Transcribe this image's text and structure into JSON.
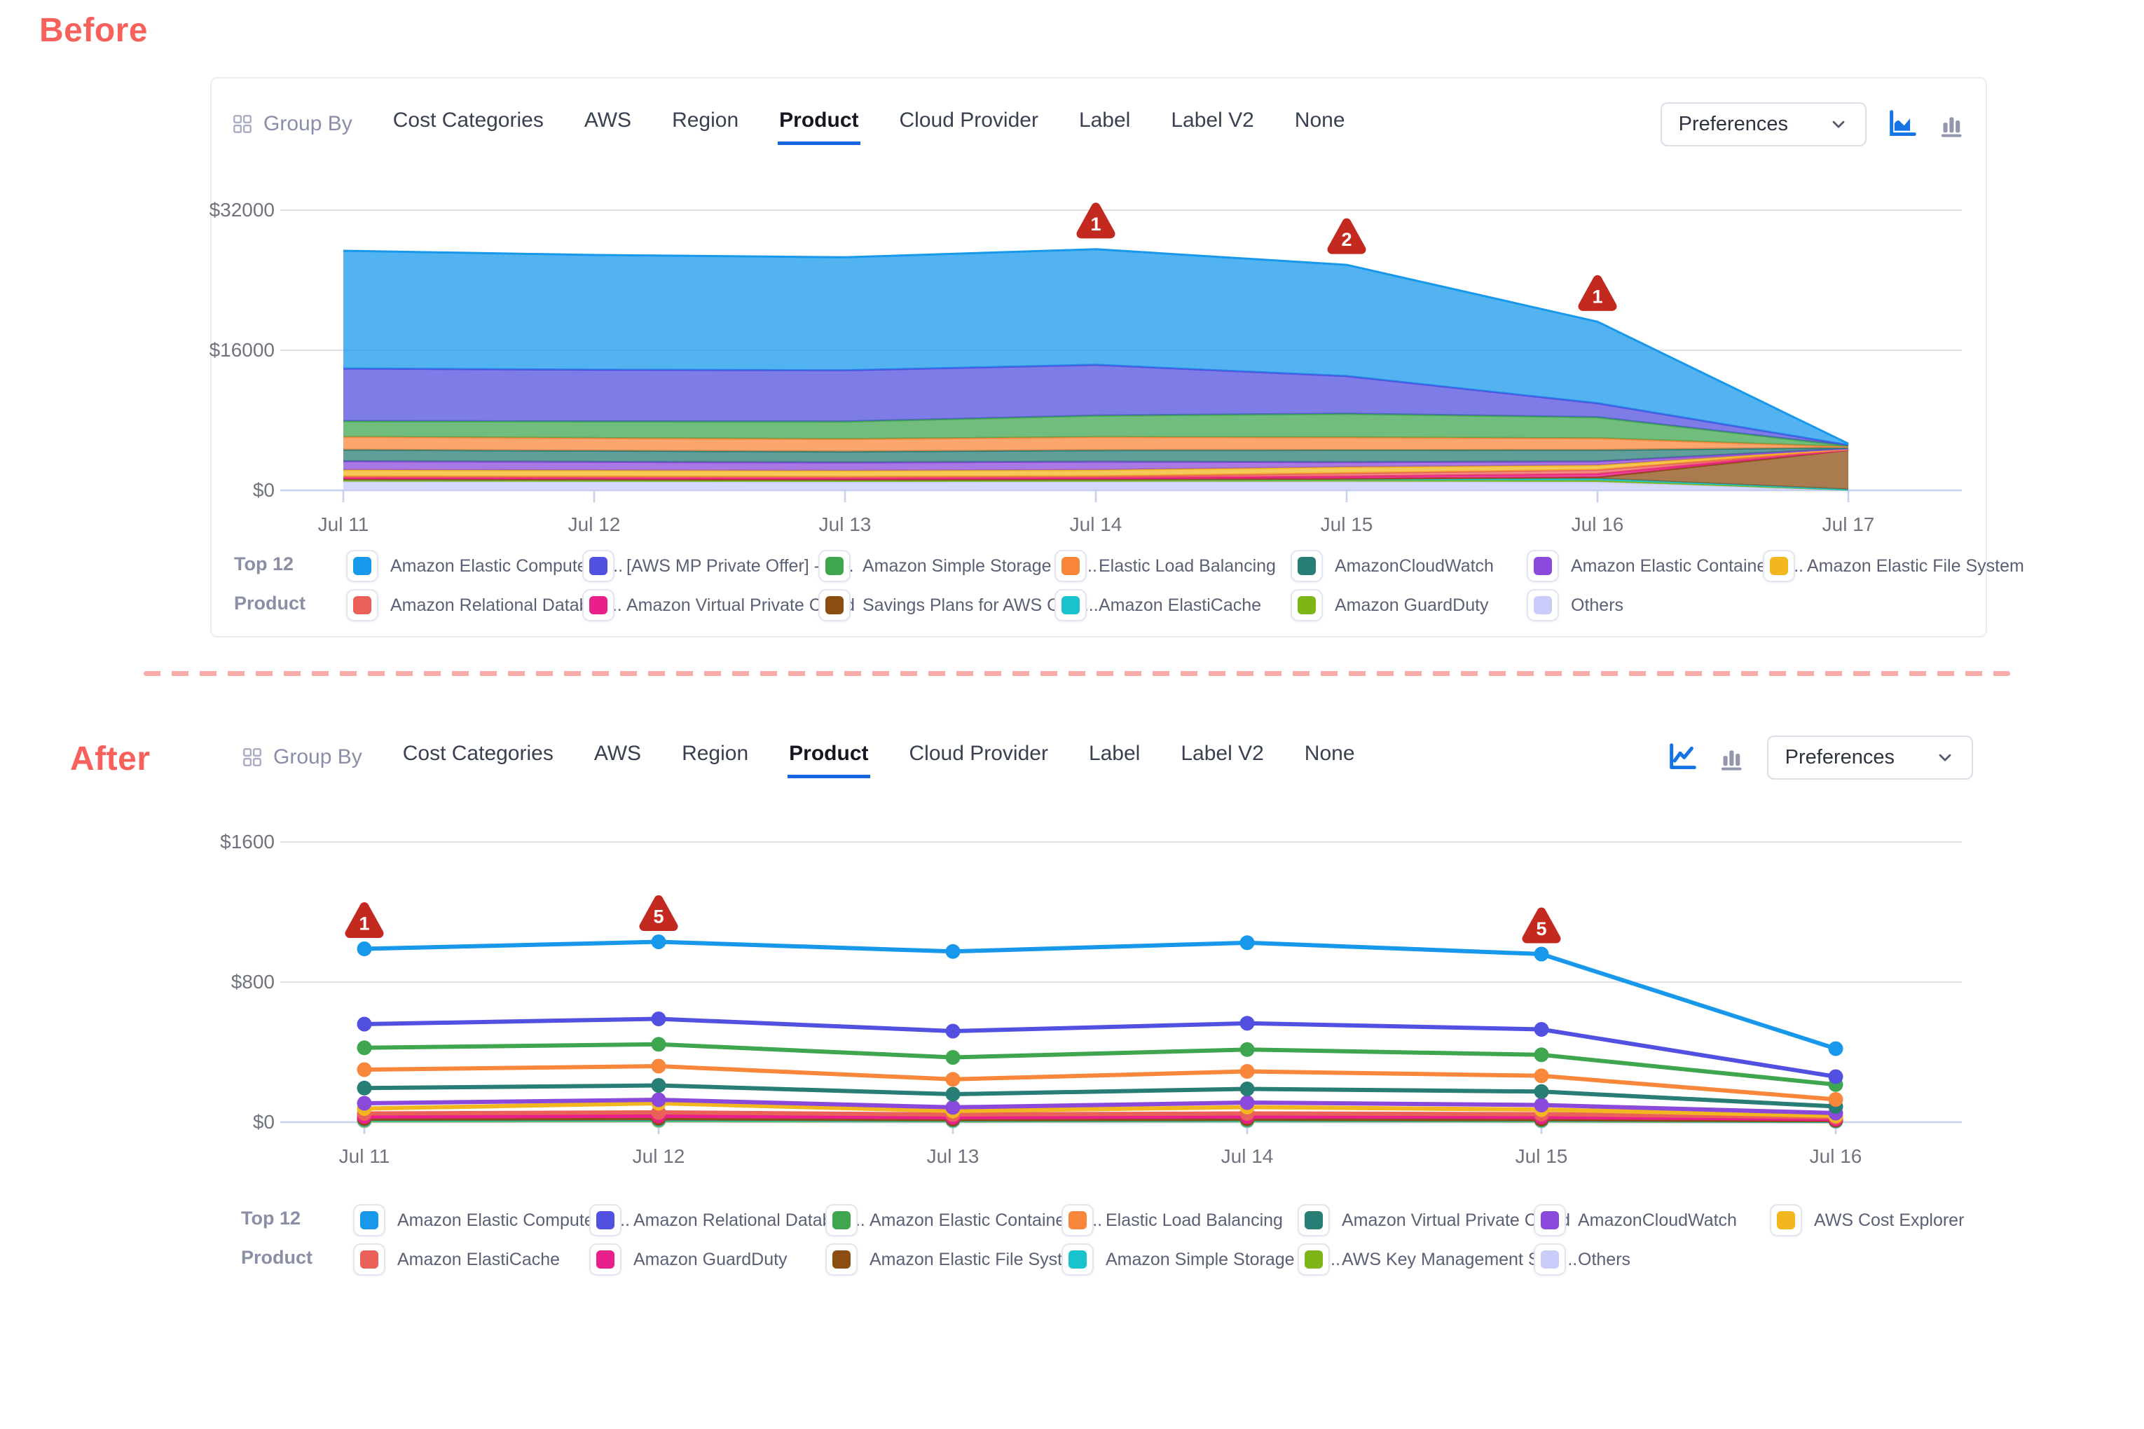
{
  "before": {
    "section_label": "Before",
    "accent_color": "#F8605C",
    "toolbar": {
      "group_by": "Group By",
      "tabs": [
        {
          "label": "Cost Categories",
          "active": false
        },
        {
          "label": "AWS",
          "active": false
        },
        {
          "label": "Region",
          "active": false
        },
        {
          "label": "Product",
          "active": true
        },
        {
          "label": "Cloud Provider",
          "active": false
        },
        {
          "label": "Label",
          "active": false
        },
        {
          "label": "Label V2",
          "active": false
        },
        {
          "label": "None",
          "active": false
        }
      ],
      "preferences": "Preferences",
      "icons": [
        {
          "name": "area-chart-icon",
          "active": true
        },
        {
          "name": "bar-chart-icon",
          "active": false
        }
      ]
    },
    "legend_title": [
      "Top 12",
      "Product"
    ],
    "chart_data": {
      "type": "area",
      "stacked": true,
      "title": "",
      "x": [
        "Jul 11",
        "Jul 12",
        "Jul 13",
        "Jul 14",
        "Jul 15",
        "Jul 16",
        "Jul 17"
      ],
      "y_ticks": [
        {
          "label": "$0",
          "value": 0
        },
        {
          "label": "$16000",
          "value": 16000
        },
        {
          "label": "$32000",
          "value": 32000
        }
      ],
      "ylim": [
        0,
        32000
      ],
      "grid": true,
      "legend_position": "bottom",
      "series": [
        {
          "name": "Amazon Elastic Compute Cl...",
          "color": "#1798EB",
          "values": [
            13450,
            13100,
            12900,
            13200,
            12700,
            9300,
            150
          ]
        },
        {
          "name": "[AWS MP Private Offer] - M...",
          "color": "#5150E0",
          "values": [
            6000,
            5900,
            5850,
            5800,
            4300,
            1600,
            80
          ]
        },
        {
          "name": "Amazon Simple Storage Ser...",
          "color": "#3FA64F",
          "values": [
            1800,
            1900,
            2000,
            2450,
            2700,
            2400,
            120
          ]
        },
        {
          "name": "Elastic Load Balancing",
          "color": "#F8873B",
          "values": [
            1480,
            1450,
            1430,
            1500,
            1450,
            1350,
            100
          ]
        },
        {
          "name": "AmazonCloudWatch",
          "color": "#287D75",
          "values": [
            1310,
            1280,
            1260,
            1310,
            1380,
            1300,
            90
          ]
        },
        {
          "name": "Amazon Elastic Container S...",
          "color": "#8A49DB",
          "values": [
            990,
            960,
            930,
            950,
            560,
            430,
            60
          ]
        },
        {
          "name": "Amazon Elastic File System",
          "color": "#F2B61E",
          "values": [
            740,
            720,
            700,
            720,
            700,
            540,
            50
          ]
        },
        {
          "name": "Amazon Relational Databas...",
          "color": "#EA6159",
          "values": [
            160,
            160,
            160,
            170,
            360,
            470,
            40
          ]
        },
        {
          "name": "Amazon Virtual Private Cloud",
          "color": "#E9208B",
          "values": [
            150,
            150,
            150,
            160,
            260,
            370,
            30
          ]
        },
        {
          "name": "Savings Plans for AWS Com...",
          "color": "#8C4D12",
          "values": [
            0,
            0,
            0,
            0,
            0,
            160,
            4500
          ]
        },
        {
          "name": "Amazon ElastiCache",
          "color": "#19C3CD",
          "values": [
            150,
            145,
            140,
            150,
            185,
            210,
            25
          ]
        },
        {
          "name": "Amazon GuardDuty",
          "color": "#7EB617",
          "values": [
            130,
            130,
            130,
            140,
            155,
            165,
            20
          ]
        },
        {
          "name": "Others",
          "color": "#C9CCF8",
          "values": [
            1000,
            985,
            965,
            985,
            1000,
            960,
            60
          ]
        }
      ],
      "annotations": [
        {
          "x": "Jul 14",
          "count": "1"
        },
        {
          "x": "Jul 15",
          "count": "2"
        },
        {
          "x": "Jul 16",
          "count": "1"
        }
      ],
      "annotation_color": "#C3291F"
    }
  },
  "separator": {
    "style": "dashed",
    "color": "#F9ABA9"
  },
  "after": {
    "section_label": "After",
    "accent_color": "#F8605C",
    "toolbar": {
      "group_by": "Group By",
      "tabs": [
        {
          "label": "Cost Categories",
          "active": false
        },
        {
          "label": "AWS",
          "active": false
        },
        {
          "label": "Region",
          "active": false
        },
        {
          "label": "Product",
          "active": true
        },
        {
          "label": "Cloud Provider",
          "active": false
        },
        {
          "label": "Label",
          "active": false
        },
        {
          "label": "Label V2",
          "active": false
        },
        {
          "label": "None",
          "active": false
        }
      ],
      "preferences": "Preferences",
      "icons": [
        {
          "name": "line-chart-icon",
          "active": true
        },
        {
          "name": "bar-chart-icon",
          "active": false
        }
      ]
    },
    "legend_title": [
      "Top 12",
      "Product"
    ],
    "chart_data": {
      "type": "line",
      "stacked": false,
      "title": "",
      "x": [
        "Jul 11",
        "Jul 12",
        "Jul 13",
        "Jul 14",
        "Jul 15",
        "Jul 16"
      ],
      "y_ticks": [
        {
          "label": "$0",
          "value": 0
        },
        {
          "label": "$800",
          "value": 800
        },
        {
          "label": "$1600",
          "value": 1600
        }
      ],
      "ylim": [
        0,
        1600
      ],
      "grid": true,
      "legend_position": "bottom",
      "series": [
        {
          "name": "Amazon Elastic Compute Cl...",
          "color": "#1798EB",
          "values": [
            990,
            1030,
            975,
            1025,
            960,
            420
          ]
        },
        {
          "name": "Amazon Relational Databas...",
          "color": "#5150E0",
          "values": [
            560,
            590,
            520,
            565,
            530,
            260
          ]
        },
        {
          "name": "Amazon Elastic Container S...",
          "color": "#3FA64F",
          "values": [
            425,
            445,
            370,
            415,
            385,
            215
          ]
        },
        {
          "name": "Elastic Load Balancing",
          "color": "#F8873B",
          "values": [
            300,
            320,
            245,
            290,
            265,
            130
          ]
        },
        {
          "name": "Amazon Virtual Private Cloud",
          "color": "#287D75",
          "values": [
            195,
            210,
            160,
            190,
            175,
            90
          ]
        },
        {
          "name": "AmazonCloudWatch",
          "color": "#8A49DB",
          "values": [
            108,
            128,
            85,
            112,
            98,
            52
          ]
        },
        {
          "name": "AWS Cost Explorer",
          "color": "#F2B61E",
          "values": [
            78,
            108,
            64,
            86,
            72,
            36
          ]
        },
        {
          "name": "Amazon ElastiCache",
          "color": "#EA6159",
          "values": [
            50,
            56,
            44,
            50,
            46,
            28
          ]
        },
        {
          "name": "Amazon GuardDuty",
          "color": "#E9208B",
          "values": [
            32,
            36,
            28,
            32,
            30,
            18
          ]
        },
        {
          "name": "Amazon Elastic File System",
          "color": "#8C4D12",
          "values": [
            20,
            22,
            17,
            19,
            17,
            11
          ]
        },
        {
          "name": "Amazon Simple Storage Ser...",
          "color": "#19C3CD",
          "values": [
            15,
            16,
            13,
            14,
            13,
            8
          ]
        },
        {
          "name": "AWS Key Management Serv...",
          "color": "#7EB617",
          "values": [
            11,
            12,
            10,
            11,
            10,
            7
          ]
        },
        {
          "name": "Others",
          "color": "#C9CCF8",
          "values": [
            7,
            8,
            6,
            7,
            6,
            4
          ]
        }
      ],
      "annotations": [
        {
          "x": "Jul 11",
          "count": "1"
        },
        {
          "x": "Jul 12",
          "count": "5"
        },
        {
          "x": "Jul 15",
          "count": "5"
        }
      ],
      "annotation_color": "#C3291F"
    }
  }
}
